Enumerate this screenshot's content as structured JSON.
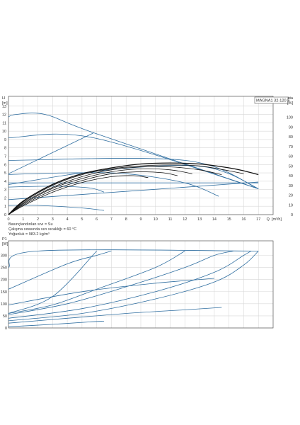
{
  "colors": {
    "blue": "#2f6ea0",
    "black": "#111111",
    "grid": "#d8d8d8",
    "axis": "#555555"
  },
  "chart_data": [
    {
      "type": "line",
      "title": "MAGNA1 32-120 F",
      "ylabel": "H",
      "yunit": "[m]",
      "xlabel": "Q",
      "xunit": "[m³/h]",
      "y2label": "eta",
      "y2unit": "[%]",
      "xlim": [
        0,
        18
      ],
      "ylim": [
        0,
        14
      ],
      "y2lim": [
        0,
        120
      ],
      "xticks": [
        "0",
        "1",
        "2",
        "3",
        "4",
        "5",
        "6",
        "7",
        "8",
        "9",
        "10",
        "11",
        "12",
        "13",
        "14",
        "15",
        "16",
        "17"
      ],
      "yticks": [
        "0",
        "1",
        "2",
        "3",
        "4",
        "5",
        "6",
        "7",
        "8",
        "9",
        "10",
        "11",
        "12",
        "13"
      ],
      "y2ticks": [
        "0",
        "10",
        "20",
        "30",
        "40",
        "50",
        "60",
        "70",
        "80",
        "90",
        "100"
      ],
      "notes": [
        "Basınçlandırılan sıvı = Su",
        "Çalışma sırasında sıvı sıcaklığı = 60 °C",
        "Yoğunluk = 983.2 kg/m³"
      ],
      "head_curves": [
        [
          [
            0,
            11.7
          ],
          [
            0.5,
            12
          ],
          [
            2.5,
            12
          ],
          [
            5.8,
            9.8
          ],
          [
            17,
            3.1
          ]
        ],
        [
          [
            0,
            9.2
          ],
          [
            5.8,
            9.2
          ],
          [
            17,
            3.1
          ]
        ],
        [
          [
            0,
            6.5
          ],
          [
            12,
            6.5
          ],
          [
            17,
            3.1
          ]
        ],
        [
          [
            0,
            4.9
          ],
          [
            5.8,
            9.8
          ]
        ],
        [
          [
            0,
            3.6
          ],
          [
            5,
            5
          ],
          [
            10,
            5.8
          ],
          [
            13,
            5.8
          ],
          [
            15,
            4.9
          ],
          [
            17,
            3.1
          ]
        ],
        [
          [
            0,
            4.8
          ],
          [
            4,
            5.0
          ],
          [
            8,
            4.9
          ],
          [
            12,
            3.8
          ],
          [
            14.3,
            2.2
          ]
        ],
        [
          [
            0,
            3.8
          ],
          [
            17,
            3.8
          ]
        ],
        [
          [
            0,
            1.8
          ],
          [
            17,
            3.9
          ]
        ],
        [
          [
            0,
            3.3
          ],
          [
            3,
            3.4
          ],
          [
            5.5,
            3.2
          ],
          [
            6.5,
            2.7
          ]
        ],
        [
          [
            0,
            1.1
          ],
          [
            2,
            1.1
          ],
          [
            5,
            0.8
          ],
          [
            6.5,
            0.5
          ]
        ]
      ],
      "efficiency_curves": [
        [
          [
            0,
            0
          ],
          [
            1,
            14
          ],
          [
            3,
            31
          ],
          [
            5,
            42
          ],
          [
            7,
            48
          ],
          [
            9,
            52
          ],
          [
            11,
            53
          ],
          [
            13,
            52
          ],
          [
            15,
            48
          ],
          [
            16,
            45
          ],
          [
            17,
            41
          ]
        ],
        [
          [
            0,
            0
          ],
          [
            1,
            13
          ],
          [
            3,
            30
          ],
          [
            5,
            41
          ],
          [
            7,
            47
          ],
          [
            9,
            50
          ],
          [
            11,
            51
          ],
          [
            13,
            50
          ],
          [
            15,
            45
          ],
          [
            16,
            42
          ]
        ],
        [
          [
            0,
            0
          ],
          [
            1,
            12
          ],
          [
            3,
            28
          ],
          [
            5,
            39
          ],
          [
            7,
            46
          ],
          [
            9,
            49
          ],
          [
            11,
            49
          ],
          [
            13,
            46
          ],
          [
            14.5,
            41
          ]
        ],
        [
          [
            0,
            0
          ],
          [
            1,
            11
          ],
          [
            3,
            27
          ],
          [
            5,
            37
          ],
          [
            7,
            44
          ],
          [
            9,
            47
          ],
          [
            11,
            46
          ],
          [
            12.5,
            42
          ]
        ],
        [
          [
            0,
            0
          ],
          [
            1,
            10
          ],
          [
            3,
            25
          ],
          [
            5,
            35
          ],
          [
            7,
            42
          ],
          [
            9,
            44
          ],
          [
            10.5,
            43
          ],
          [
            11.5,
            40
          ]
        ],
        [
          [
            0,
            0
          ],
          [
            1,
            9
          ],
          [
            3,
            23
          ],
          [
            5,
            33
          ],
          [
            7,
            39
          ],
          [
            8.5,
            40
          ],
          [
            9.5,
            38
          ]
        ]
      ]
    },
    {
      "type": "line",
      "ylabel": "P1",
      "yunit": "[W]",
      "xlim": [
        0,
        18
      ],
      "ylim": [
        0,
        360
      ],
      "yticks": [
        "0",
        "50",
        "100",
        "150",
        "200",
        "250",
        "300"
      ],
      "power_curves": [
        [
          [
            0,
            250
          ],
          [
            2,
            318
          ],
          [
            17,
            318
          ]
        ],
        [
          [
            0,
            160
          ],
          [
            4,
            265
          ],
          [
            6,
            300
          ],
          [
            7,
            318
          ]
        ],
        [
          [
            0,
            60
          ],
          [
            3,
            130
          ],
          [
            6,
            318
          ]
        ],
        [
          [
            0,
            60
          ],
          [
            3,
            95
          ],
          [
            6,
            160
          ],
          [
            10,
            250
          ],
          [
            12,
            318
          ]
        ],
        [
          [
            0,
            55
          ],
          [
            4,
            100
          ],
          [
            8,
            170
          ],
          [
            12,
            250
          ],
          [
            14,
            300
          ],
          [
            15.3,
            318
          ]
        ],
        [
          [
            0,
            40
          ],
          [
            5,
            80
          ],
          [
            10,
            150
          ],
          [
            14,
            230
          ],
          [
            16,
            300
          ],
          [
            16.5,
            318
          ]
        ],
        [
          [
            0,
            30
          ],
          [
            5,
            60
          ],
          [
            10,
            120
          ],
          [
            14,
            190
          ],
          [
            16,
            260
          ],
          [
            17,
            318
          ]
        ],
        [
          [
            0,
            95
          ],
          [
            5,
            150
          ],
          [
            10,
            185
          ],
          [
            14,
            205
          ]
        ],
        [
          [
            0,
            20
          ],
          [
            4,
            40
          ],
          [
            8,
            60
          ],
          [
            12,
            75
          ],
          [
            14.5,
            85
          ]
        ],
        [
          [
            0,
            5
          ],
          [
            3,
            15
          ],
          [
            5.5,
            25
          ],
          [
            6.5,
            28
          ]
        ]
      ]
    }
  ]
}
